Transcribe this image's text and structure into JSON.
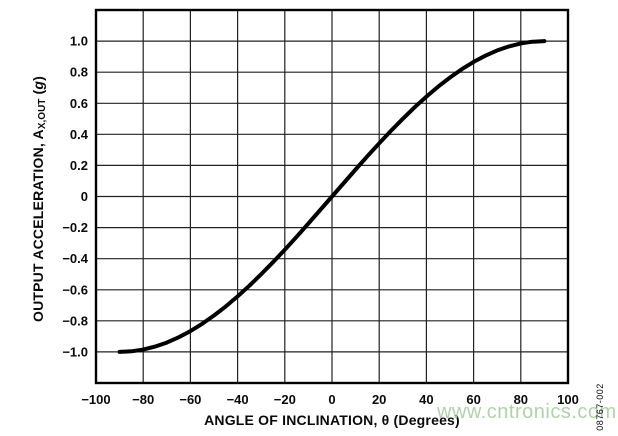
{
  "chart_data": {
    "type": "line",
    "title": "",
    "xlabel": "ANGLE OF INCLINATION, θ (Degrees)",
    "ylabel": "OUTPUT ACCELERATION, AX,OUT (g)",
    "ylabel_parts": {
      "main": "OUTPUT ACCELERATION, A",
      "sub": "X,OUT",
      "mid": " (",
      "italic": "g",
      "end": ")"
    },
    "xlim": [
      -100,
      100
    ],
    "ylim": [
      -1.2,
      1.2
    ],
    "grid": true,
    "x_ticks": [
      -100,
      -80,
      -60,
      -40,
      -20,
      0,
      20,
      40,
      60,
      80,
      100
    ],
    "x_tick_labels": [
      "−100",
      "−80",
      "−60",
      "−40",
      "−20",
      "0",
      "20",
      "40",
      "60",
      "80",
      "100"
    ],
    "y_ticks": [
      1.0,
      0.8,
      0.6,
      0.4,
      0.2,
      0,
      -0.2,
      -0.4,
      -0.6,
      -0.8,
      -1.0
    ],
    "y_tick_labels": [
      "1.0",
      "0.8",
      "0.6",
      "0.4",
      "0.2",
      "0",
      "−0.2",
      "−0.4",
      "−0.6",
      "−0.8",
      "−1.0"
    ],
    "y_gridlines": [
      -1.2,
      -1.0,
      -0.8,
      -0.6,
      -0.4,
      -0.2,
      0,
      0.2,
      0.4,
      0.6,
      0.8,
      1.0,
      1.2
    ],
    "line_color": "#000000",
    "series": [
      {
        "name": "output-acceleration-vs-angle",
        "x": [
          -90,
          -85,
          -80,
          -75,
          -70,
          -65,
          -60,
          -55,
          -50,
          -45,
          -40,
          -35,
          -30,
          -25,
          -20,
          -15,
          -10,
          -5,
          0,
          5,
          10,
          15,
          20,
          25,
          30,
          35,
          40,
          45,
          50,
          55,
          60,
          65,
          70,
          75,
          80,
          85,
          90
        ],
        "y": [
          -1,
          -0.996,
          -0.985,
          -0.966,
          -0.94,
          -0.906,
          -0.866,
          -0.819,
          -0.766,
          -0.707,
          -0.643,
          -0.574,
          -0.5,
          -0.423,
          -0.342,
          -0.259,
          -0.174,
          -0.087,
          0,
          0.087,
          0.174,
          0.259,
          0.342,
          0.423,
          0.5,
          0.574,
          0.643,
          0.707,
          0.766,
          0.819,
          0.866,
          0.906,
          0.94,
          0.966,
          0.985,
          0.996,
          1
        ]
      }
    ]
  },
  "watermark": {
    "text": "www.cntronics.com"
  },
  "figure_id": "08767-002",
  "colors": {
    "background": "#ffffff",
    "grid": "#222222",
    "frame": "#000000",
    "text": "#0a0a0a",
    "watermark": "#a6cfa0"
  }
}
